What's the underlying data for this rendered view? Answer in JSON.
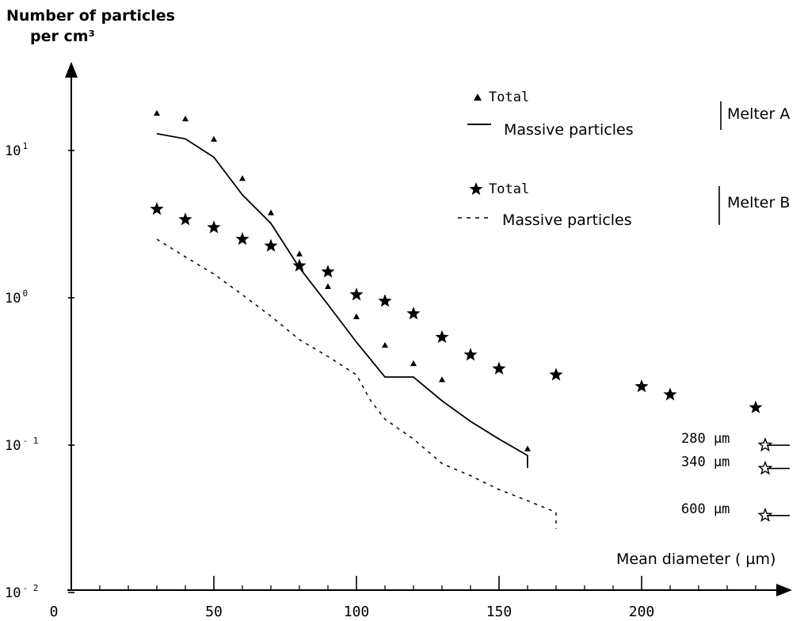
{
  "chart_data": {
    "type": "scatter",
    "title": "",
    "ylabel": [
      "Number of particles",
      "per cm³"
    ],
    "xlabel": "Mean diameter ( µm)",
    "x_scale": "linear",
    "y_scale": "log",
    "xlim": [
      0,
      250
    ],
    "ylim": [
      0.01,
      50
    ],
    "x_ticks": [
      0,
      50,
      100,
      150,
      200
    ],
    "x_tick_labels": [
      "0",
      "50",
      "100",
      "150",
      "200"
    ],
    "y_ticks": [
      0.01,
      0.1,
      1,
      10
    ],
    "y_tick_labels": [
      {
        "base": "10",
        "exp": "- 2"
      },
      {
        "base": "10",
        "exp": "- 1"
      },
      {
        "base": "10",
        "exp": "0"
      },
      {
        "base": "10",
        "exp": "1"
      }
    ],
    "legend": {
      "position": "top-right",
      "groups": [
        {
          "group": "Melter A",
          "entries": [
            {
              "label": "Total",
              "marker": "triangle"
            },
            {
              "label": "Massive particles",
              "line": "solid"
            }
          ]
        },
        {
          "group": "Melter B",
          "entries": [
            {
              "label": "Total",
              "marker": "star"
            },
            {
              "label": "Massive particles",
              "line": "dashed"
            }
          ]
        }
      ]
    },
    "series": [
      {
        "group": "Melter A",
        "kind": "Total",
        "marker": "triangle",
        "x": [
          30,
          40,
          50,
          60,
          70,
          80,
          90,
          100,
          110,
          120,
          130,
          160
        ],
        "y": [
          18,
          16.5,
          12,
          6.5,
          3.8,
          2.0,
          1.2,
          0.75,
          0.48,
          0.36,
          0.28,
          0.095
        ]
      },
      {
        "group": "Melter A",
        "kind": "Massive particles",
        "line": "solid",
        "x": [
          30,
          40,
          50,
          60,
          70,
          80,
          90,
          100,
          110,
          120,
          130,
          140,
          150,
          160,
          160
        ],
        "y": [
          13,
          12,
          9,
          5,
          3.2,
          1.6,
          0.9,
          0.5,
          0.29,
          0.29,
          0.2,
          0.145,
          0.11,
          0.085,
          0.07
        ]
      },
      {
        "group": "Melter B",
        "kind": "Total",
        "marker": "star",
        "x": [
          30,
          40,
          50,
          60,
          70,
          80,
          90,
          100,
          110,
          120,
          130,
          140,
          150,
          170,
          200,
          210,
          240
        ],
        "y": [
          4.0,
          3.4,
          3.0,
          2.5,
          2.25,
          1.65,
          1.5,
          1.05,
          0.95,
          0.78,
          0.54,
          0.41,
          0.33,
          0.3,
          0.25,
          0.22,
          0.18
        ]
      },
      {
        "group": "Melter B",
        "kind": "Massive particles",
        "line": "dashed",
        "x": [
          30,
          40,
          50,
          60,
          70,
          80,
          90,
          100,
          105,
          110,
          120,
          130,
          140,
          150,
          160,
          170,
          170
        ],
        "y": [
          2.5,
          1.9,
          1.45,
          1.05,
          0.75,
          0.52,
          0.4,
          0.3,
          0.2,
          0.15,
          0.11,
          0.075,
          0.062,
          0.05,
          0.042,
          0.035,
          0.027
        ]
      }
    ],
    "annotations": [
      {
        "text": "280  µm",
        "marker": "star",
        "y": 0.105
      },
      {
        "text": "340  µm",
        "marker": "star",
        "y": 0.073
      },
      {
        "text": "600  µm",
        "marker": "star",
        "y": 0.035
      }
    ]
  }
}
